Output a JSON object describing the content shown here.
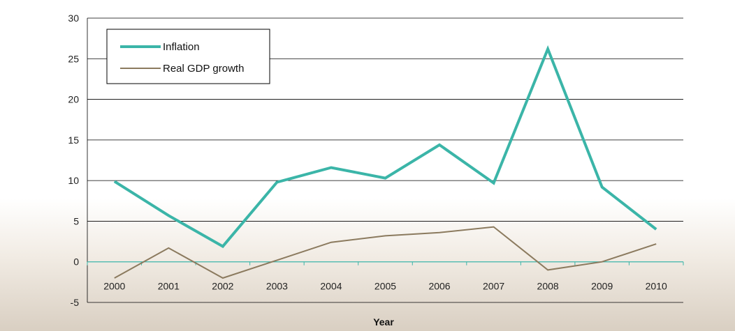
{
  "chart_data": {
    "type": "line",
    "title": "",
    "xlabel": "Year",
    "ylabel": "",
    "categories": [
      "2000",
      "2001",
      "2002",
      "2003",
      "2004",
      "2005",
      "2006",
      "2007",
      "2008",
      "2009",
      "2010"
    ],
    "ylim": [
      -5,
      30
    ],
    "yticks": [
      30,
      25,
      20,
      15,
      10,
      5,
      0,
      -5
    ],
    "grid": "horizontal",
    "legend_position": "top-left",
    "series": [
      {
        "name": "Inflation",
        "color": "#3bb5a8",
        "values": [
          9.9,
          5.7,
          1.9,
          9.8,
          11.6,
          10.3,
          14.4,
          9.7,
          26.2,
          9.2,
          4.0
        ]
      },
      {
        "name": "Real GDP growth",
        "color": "#8b7a5e",
        "values": [
          -2.0,
          1.7,
          -2.0,
          0.2,
          2.4,
          3.2,
          3.6,
          4.3,
          -1.0,
          0.0,
          2.2
        ]
      }
    ]
  },
  "colors": {
    "zero_line": "#3bb5a8",
    "grid": "#000000",
    "background_bottom": "#d9cfc2"
  }
}
